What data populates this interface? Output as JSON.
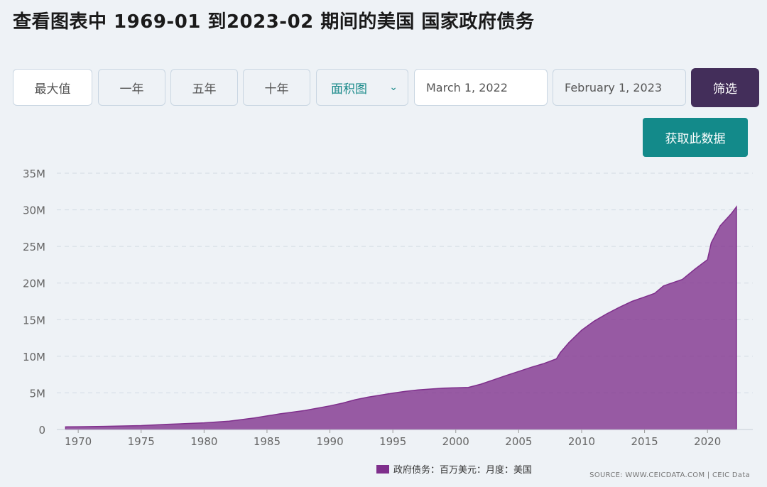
{
  "title": "查看图表中 1969-01 到2023-02 期间的美国 国家政府债务",
  "controls": {
    "range_buttons": [
      "最大值",
      "一年",
      "五年",
      "十年"
    ],
    "chart_type": "面积图",
    "start_date": "March 1, 2022",
    "end_date": "February 1, 2023",
    "filter_label": "筛选",
    "get_data_label": "获取此数据"
  },
  "colors": {
    "area": "#7f2f8c",
    "button_dark": "#432e5a",
    "button_teal": "#138a8a"
  },
  "legend_label": "政府债务：百万美元：月度：美国",
  "source": "SOURCE: WWW.CEICDATA.COM | CEIC Data",
  "chart_data": {
    "type": "area",
    "x_ticks": [
      "1970",
      "1975",
      "1980",
      "1985",
      "1990",
      "1995",
      "2000",
      "2005",
      "2010",
      "2015",
      "2020"
    ],
    "y_ticks": [
      "0",
      "5M",
      "10M",
      "15M",
      "20M",
      "25M",
      "30M",
      "35M"
    ],
    "y_unit_millions": true,
    "ylim": [
      0,
      35
    ],
    "xlim": [
      1968.3,
      2023.6
    ],
    "grid": true,
    "series": [
      {
        "name": "政府债务：百万美元：月度：美国",
        "points": [
          [
            1969.0,
            0.37
          ],
          [
            1970,
            0.38
          ],
          [
            1972,
            0.43
          ],
          [
            1975,
            0.53
          ],
          [
            1977,
            0.7
          ],
          [
            1980,
            0.91
          ],
          [
            1982,
            1.14
          ],
          [
            1984,
            1.57
          ],
          [
            1986,
            2.13
          ],
          [
            1988,
            2.6
          ],
          [
            1990,
            3.23
          ],
          [
            1991,
            3.6
          ],
          [
            1992,
            4.06
          ],
          [
            1993,
            4.41
          ],
          [
            1994,
            4.69
          ],
          [
            1995,
            4.97
          ],
          [
            1996,
            5.22
          ],
          [
            1997,
            5.41
          ],
          [
            1998,
            5.53
          ],
          [
            1999,
            5.65
          ],
          [
            2000,
            5.7
          ],
          [
            2001,
            5.75
          ],
          [
            2002,
            6.2
          ],
          [
            2003,
            6.78
          ],
          [
            2004,
            7.38
          ],
          [
            2005,
            7.93
          ],
          [
            2006,
            8.5
          ],
          [
            2007,
            9.01
          ],
          [
            2008,
            9.65
          ],
          [
            2008.3,
            10.5
          ],
          [
            2009,
            11.9
          ],
          [
            2010,
            13.56
          ],
          [
            2011,
            14.8
          ],
          [
            2012,
            15.8
          ],
          [
            2013,
            16.7
          ],
          [
            2014,
            17.5
          ],
          [
            2015,
            18.1
          ],
          [
            2015.8,
            18.6
          ],
          [
            2016.5,
            19.6
          ],
          [
            2017,
            19.9
          ],
          [
            2018,
            20.5
          ],
          [
            2019,
            21.9
          ],
          [
            2020,
            23.2
          ],
          [
            2020.3,
            25.5
          ],
          [
            2021,
            27.8
          ],
          [
            2021.9,
            29.5
          ],
          [
            2022.3,
            30.4
          ]
        ]
      }
    ]
  }
}
